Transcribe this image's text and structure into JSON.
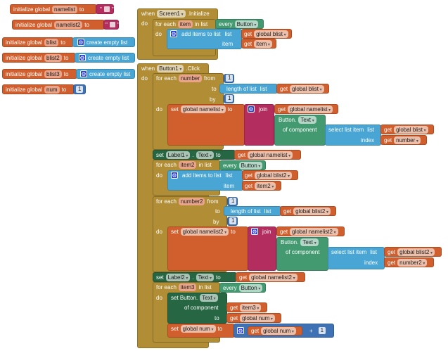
{
  "globals": [
    {
      "label": "initialize global",
      "name": "namelist",
      "to": "to",
      "value": ""
    },
    {
      "label": "initialize global",
      "name": "namelist2",
      "to": "to",
      "value": ""
    },
    {
      "label": "initialize global",
      "name": "blist",
      "to": "to",
      "value": "create empty list"
    },
    {
      "label": "initialize global",
      "name": "blist2",
      "to": "to",
      "value": "create empty list"
    },
    {
      "label": "initialize global",
      "name": "blist3",
      "to": "to",
      "value": "create empty list"
    },
    {
      "label": "initialize global",
      "name": "num",
      "to": "to",
      "value": "1"
    }
  ],
  "screen_init": {
    "when": "when",
    "component": "Screen1",
    "event": ".Initialize",
    "do": "do",
    "foreach": {
      "label": "for each",
      "var": "item",
      "in_list": "in list",
      "every": "every",
      "component": "Button",
      "do": "do",
      "add": {
        "label": "add items to list",
        "list": "list",
        "get": "get",
        "list_var": "global blist",
        "item": "item",
        "item_var": "item"
      }
    }
  },
  "button_click": {
    "when": "when",
    "component": "Button1",
    "event": ".Click",
    "do": "do",
    "loop1": {
      "label": "for each",
      "var": "number",
      "from": "from",
      "from_val": "1",
      "to": "to",
      "length": "length of list",
      "list": "list",
      "get": "get",
      "list_var": "global blist",
      "by": "by",
      "by_val": "1",
      "do": "do",
      "set": "set",
      "set_var": "global namelist",
      "set_to": "to",
      "join": "join",
      "join_var": "global namelist",
      "button": "Button.",
      "prop": "Text",
      "of_component": "of component",
      "select": "select list item",
      "select_list": "list",
      "select_var": "global blist",
      "index": "index",
      "index_var": "number"
    },
    "set_label1": {
      "set": "set",
      "component": "Label1",
      "dot": ".",
      "prop": "Text",
      "to": "to",
      "get": "get",
      "var": "global namelist"
    },
    "loop2": {
      "label": "for each",
      "var": "item2",
      "in_list": "in list",
      "every": "every",
      "component": "Button",
      "do": "do",
      "add": "add items to list",
      "list": "list",
      "get": "get",
      "list_var": "global blist2",
      "item": "item",
      "item_var": "item2"
    },
    "loop3": {
      "label": "for each",
      "var": "number2",
      "from": "from",
      "from_val": "1",
      "to": "to",
      "length": "length of list",
      "list": "list",
      "get": "get",
      "list_var": "global blist2",
      "by": "by",
      "by_val": "1",
      "do": "do",
      "set": "set",
      "set_var": "global namelist2",
      "set_to": "to",
      "join": "join",
      "join_var": "global namelist2",
      "button": "Button.",
      "prop": "Text",
      "of_component": "of component",
      "select": "select list item",
      "select_list": "list",
      "select_var": "global blist2",
      "index": "index",
      "index_var": "number2"
    },
    "set_label2": {
      "set": "set",
      "component": "Label2",
      "dot": ".",
      "prop": "Text",
      "to": "to",
      "get": "get",
      "var": "global namelist2"
    },
    "loop4": {
      "label": "for each",
      "var": "item3",
      "in_list": "in list",
      "every": "every",
      "component": "Button",
      "do": "do",
      "set_button": "set Button.",
      "prop": "Text",
      "of_component": "of component",
      "get": "get",
      "comp_var": "item3",
      "to": "to",
      "val_var": "global num",
      "set": "set",
      "set_var": "global num",
      "set_to": "to",
      "plus_var": "global num",
      "plus": "+",
      "plus_val": "1"
    }
  }
}
